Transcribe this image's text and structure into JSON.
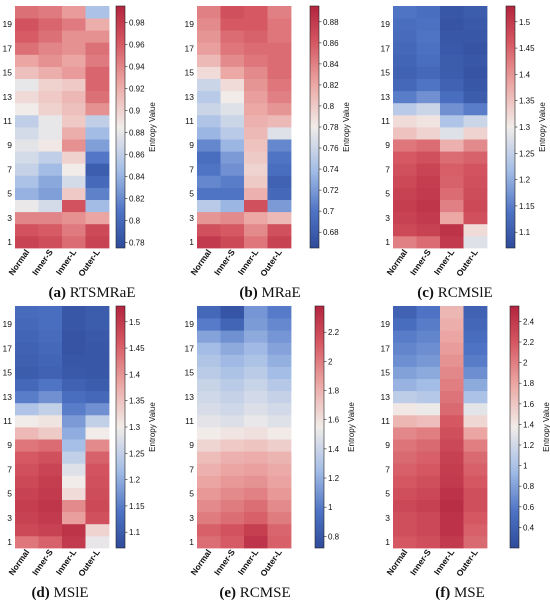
{
  "figure": {
    "panels_order": [
      "a",
      "b",
      "c",
      "d",
      "e",
      "f"
    ]
  },
  "chart_data": [
    {
      "id": "a",
      "type": "heatmap",
      "caption_letter": "(a)",
      "caption_name": "RTSMRaE",
      "x_categories": [
        "Normal",
        "Inner-S",
        "Inner-L",
        "Outer-L"
      ],
      "y_ticks": [
        1,
        3,
        5,
        7,
        9,
        11,
        13,
        15,
        17,
        19
      ],
      "scale_min": 0.775,
      "scale_max": 0.995,
      "cb_ticks": [
        "0.78",
        "0.8",
        "0.82",
        "0.84",
        "0.86",
        "0.88",
        "0.9",
        "0.92",
        "0.94",
        "0.96",
        "0.98"
      ],
      "cb_tick_values": [
        0.78,
        0.8,
        0.82,
        0.84,
        0.86,
        0.88,
        0.9,
        0.92,
        0.94,
        0.96,
        0.98
      ],
      "colorbar_label": "Entropy Value",
      "rows": [
        [
          0.975,
          0.968,
          0.952,
          0.975
        ],
        [
          0.965,
          0.96,
          0.945,
          0.97
        ],
        [
          0.94,
          0.94,
          0.935,
          0.925
        ],
        [
          0.882,
          0.87,
          0.965,
          0.845
        ],
        [
          0.84,
          0.83,
          0.905,
          0.815
        ],
        [
          0.85,
          0.835,
          0.87,
          0.8
        ],
        [
          0.862,
          0.845,
          0.885,
          0.79
        ],
        [
          0.87,
          0.86,
          0.9,
          0.81
        ],
        [
          0.878,
          0.888,
          0.935,
          0.83
        ],
        [
          0.87,
          0.88,
          0.92,
          0.845
        ],
        [
          0.86,
          0.88,
          0.905,
          0.86
        ],
        [
          0.885,
          0.9,
          0.91,
          0.935
        ],
        [
          0.895,
          0.905,
          0.915,
          0.95
        ],
        [
          0.88,
          0.9,
          0.905,
          0.955
        ],
        [
          0.91,
          0.92,
          0.93,
          0.955
        ],
        [
          0.925,
          0.935,
          0.925,
          0.945
        ],
        [
          0.95,
          0.94,
          0.935,
          0.95
        ],
        [
          0.96,
          0.95,
          0.935,
          0.935
        ],
        [
          0.965,
          0.955,
          0.945,
          0.92
        ],
        [
          0.95,
          0.945,
          0.93,
          0.85
        ]
      ]
    },
    {
      "id": "b",
      "type": "heatmap",
      "caption_letter": "(b)",
      "caption_name": "MRaE",
      "x_categories": [
        "Normal",
        "Inner-S",
        "Inner-L",
        "Outer-L"
      ],
      "y_ticks": [
        1,
        3,
        5,
        7,
        9,
        11,
        13,
        15,
        17,
        19
      ],
      "scale_min": 0.665,
      "scale_max": 0.895,
      "cb_ticks": [
        "0.68",
        "0.7",
        "0.72",
        "0.74",
        "0.76",
        "0.78",
        "0.8",
        "0.82",
        "0.84",
        "0.86",
        "0.88"
      ],
      "cb_tick_values": [
        0.68,
        0.7,
        0.72,
        0.74,
        0.76,
        0.78,
        0.8,
        0.82,
        0.84,
        0.86,
        0.88
      ],
      "colorbar_label": "Entropy Value",
      "rows": [
        [
          0.88,
          0.87,
          0.845,
          0.875
        ],
        [
          0.865,
          0.86,
          0.835,
          0.865
        ],
        [
          0.83,
          0.835,
          0.82,
          0.81
        ],
        [
          0.75,
          0.735,
          0.865,
          0.72
        ],
        [
          0.7,
          0.7,
          0.815,
          0.69
        ],
        [
          0.71,
          0.705,
          0.8,
          0.685
        ],
        [
          0.7,
          0.715,
          0.795,
          0.695
        ],
        [
          0.695,
          0.72,
          0.8,
          0.7
        ],
        [
          0.71,
          0.735,
          0.805,
          0.71
        ],
        [
          0.735,
          0.75,
          0.81,
          0.77
        ],
        [
          0.745,
          0.76,
          0.815,
          0.81
        ],
        [
          0.76,
          0.77,
          0.82,
          0.83
        ],
        [
          0.75,
          0.78,
          0.825,
          0.84
        ],
        [
          0.76,
          0.79,
          0.83,
          0.845
        ],
        [
          0.79,
          0.82,
          0.835,
          0.85
        ],
        [
          0.81,
          0.835,
          0.845,
          0.85
        ],
        [
          0.825,
          0.845,
          0.85,
          0.85
        ],
        [
          0.83,
          0.85,
          0.855,
          0.845
        ],
        [
          0.835,
          0.86,
          0.86,
          0.845
        ],
        [
          0.84,
          0.865,
          0.86,
          0.84
        ]
      ]
    },
    {
      "id": "c",
      "type": "heatmap",
      "caption_letter": "(c)",
      "caption_name": "RCMSlE",
      "x_categories": [
        "Normal",
        "Inner-S",
        "Inner-L",
        "Outer-L"
      ],
      "y_ticks": [
        1,
        3,
        5,
        7,
        9,
        11,
        13,
        15,
        17,
        19
      ],
      "scale_min": 1.07,
      "scale_max": 1.53,
      "cb_ticks": [
        "1.1",
        "1.15",
        "1.2",
        "1.25",
        "1.3",
        "1.35",
        "1.4",
        "1.45",
        "1.5"
      ],
      "cb_tick_values": [
        1.1,
        1.15,
        1.2,
        1.25,
        1.3,
        1.35,
        1.4,
        1.45,
        1.5
      ],
      "colorbar_label": "Entropy Value",
      "rows": [
        [
          1.42,
          1.44,
          1.5,
          1.28
        ],
        [
          1.48,
          1.49,
          1.51,
          1.32
        ],
        [
          1.49,
          1.5,
          1.38,
          1.47
        ],
        [
          1.495,
          1.505,
          1.42,
          1.48
        ],
        [
          1.49,
          1.5,
          1.44,
          1.475
        ],
        [
          1.48,
          1.495,
          1.45,
          1.47
        ],
        [
          1.47,
          1.485,
          1.455,
          1.465
        ],
        [
          1.46,
          1.47,
          1.44,
          1.45
        ],
        [
          1.43,
          1.44,
          1.37,
          1.41
        ],
        [
          1.35,
          1.33,
          1.28,
          1.33
        ],
        [
          1.32,
          1.31,
          1.23,
          1.26
        ],
        [
          1.24,
          1.26,
          1.17,
          1.15
        ],
        [
          1.15,
          1.17,
          1.13,
          1.1
        ],
        [
          1.12,
          1.14,
          1.11,
          1.09
        ],
        [
          1.11,
          1.12,
          1.1,
          1.085
        ],
        [
          1.115,
          1.13,
          1.1,
          1.09
        ],
        [
          1.12,
          1.135,
          1.095,
          1.085
        ],
        [
          1.125,
          1.14,
          1.09,
          1.09
        ],
        [
          1.13,
          1.135,
          1.085,
          1.095
        ],
        [
          1.14,
          1.13,
          1.09,
          1.1
        ]
      ]
    },
    {
      "id": "d",
      "type": "heatmap",
      "caption_letter": "(d)",
      "caption_name": "MSlE",
      "x_categories": [
        "Normal",
        "Inner-S",
        "Inner-L",
        "Outer-L"
      ],
      "y_ticks": [
        1,
        3,
        5,
        7,
        9,
        11,
        13,
        15,
        17,
        19
      ],
      "scale_min": 1.07,
      "scale_max": 1.53,
      "cb_ticks": [
        "1.1",
        "1.15",
        "1.2",
        "1.25",
        "1.3",
        "1.35",
        "1.4",
        "1.45",
        "1.5"
      ],
      "cb_tick_values": [
        1.1,
        1.15,
        1.2,
        1.25,
        1.3,
        1.35,
        1.4,
        1.45,
        1.5
      ],
      "colorbar_label": "Entropy Value",
      "rows": [
        [
          1.43,
          1.45,
          1.5,
          1.29
        ],
        [
          1.48,
          1.49,
          1.51,
          1.33
        ],
        [
          1.49,
          1.5,
          1.39,
          1.47
        ],
        [
          1.495,
          1.505,
          1.41,
          1.48
        ],
        [
          1.49,
          1.5,
          1.32,
          1.475
        ],
        [
          1.48,
          1.495,
          1.3,
          1.47
        ],
        [
          1.47,
          1.485,
          1.28,
          1.465
        ],
        [
          1.46,
          1.47,
          1.25,
          1.45
        ],
        [
          1.43,
          1.44,
          1.22,
          1.41
        ],
        [
          1.36,
          1.34,
          1.2,
          1.3
        ],
        [
          1.3,
          1.31,
          1.18,
          1.25
        ],
        [
          1.23,
          1.25,
          1.15,
          1.17
        ],
        [
          1.15,
          1.17,
          1.13,
          1.12
        ],
        [
          1.12,
          1.14,
          1.11,
          1.1
        ],
        [
          1.1,
          1.11,
          1.095,
          1.09
        ],
        [
          1.105,
          1.115,
          1.09,
          1.09
        ],
        [
          1.11,
          1.12,
          1.085,
          1.09
        ],
        [
          1.115,
          1.125,
          1.085,
          1.095
        ],
        [
          1.12,
          1.13,
          1.09,
          1.1
        ],
        [
          1.125,
          1.13,
          1.09,
          1.1
        ]
      ]
    },
    {
      "id": "e",
      "type": "heatmap",
      "caption_letter": "(e)",
      "caption_name": "RCMSE",
      "x_categories": [
        "Normal",
        "Inner-S",
        "Inner-L",
        "Outer-L"
      ],
      "y_ticks": [
        1,
        3,
        5,
        7,
        9,
        11,
        13,
        15,
        17,
        19
      ],
      "scale_min": 0.72,
      "scale_max": 2.38,
      "cb_ticks": [
        "0.8",
        "1",
        "1.2",
        "1.4",
        "1.6",
        "1.8",
        "2",
        "2.2"
      ],
      "cb_tick_values": [
        0.8,
        1.0,
        1.2,
        1.4,
        1.6,
        1.8,
        2.0,
        2.2
      ],
      "colorbar_label": "Entropy Value",
      "rows": [
        [
          2.05,
          2.12,
          2.3,
          2.1
        ],
        [
          2.1,
          2.15,
          2.25,
          2.08
        ],
        [
          2.0,
          2.05,
          2.1,
          2.0
        ],
        [
          1.95,
          2.0,
          2.05,
          1.95
        ],
        [
          1.9,
          1.95,
          1.98,
          1.9
        ],
        [
          1.85,
          1.9,
          1.92,
          1.86
        ],
        [
          1.8,
          1.85,
          1.87,
          1.83
        ],
        [
          1.75,
          1.8,
          1.82,
          1.79
        ],
        [
          1.65,
          1.7,
          1.72,
          1.68
        ],
        [
          1.55,
          1.58,
          1.6,
          1.56
        ],
        [
          1.5,
          1.47,
          1.52,
          1.48
        ],
        [
          1.45,
          1.42,
          1.47,
          1.43
        ],
        [
          1.42,
          1.38,
          1.43,
          1.38
        ],
        [
          1.39,
          1.34,
          1.39,
          1.32
        ],
        [
          1.34,
          1.29,
          1.34,
          1.25
        ],
        [
          1.3,
          1.24,
          1.29,
          1.2
        ],
        [
          1.25,
          1.18,
          1.24,
          1.15
        ],
        [
          1.15,
          1.08,
          1.18,
          1.1
        ],
        [
          1.0,
          0.88,
          1.12,
          1.05
        ],
        [
          0.9,
          0.78,
          1.1,
          1.0
        ]
      ]
    },
    {
      "id": "f",
      "type": "heatmap",
      "caption_letter": "(f)",
      "caption_name": "MSE",
      "x_categories": [
        "Normal",
        "Inner-S",
        "Inner-L",
        "Outer-L"
      ],
      "y_ticks": [
        1,
        3,
        5,
        7,
        9,
        11,
        13,
        15,
        17,
        19
      ],
      "scale_min": 0.2,
      "scale_max": 2.55,
      "cb_ticks": [
        "0.4",
        "0.6",
        "0.8",
        "1",
        "1.2",
        "1.4",
        "1.6",
        "1.8",
        "2",
        "2.2",
        "2.4"
      ],
      "cb_tick_values": [
        0.4,
        0.6,
        0.8,
        1.0,
        1.2,
        1.4,
        1.6,
        1.8,
        2.0,
        2.2,
        2.4
      ],
      "colorbar_label": "Entropy Value",
      "rows": [
        [
          2.2,
          2.25,
          2.4,
          2.1
        ],
        [
          2.25,
          2.3,
          2.45,
          2.15
        ],
        [
          2.25,
          2.3,
          2.45,
          2.2
        ],
        [
          2.3,
          2.35,
          2.48,
          2.25
        ],
        [
          2.25,
          2.3,
          2.45,
          2.25
        ],
        [
          2.2,
          2.25,
          2.4,
          2.2
        ],
        [
          2.15,
          2.2,
          2.38,
          2.15
        ],
        [
          2.1,
          2.15,
          2.35,
          2.1
        ],
        [
          2.05,
          2.1,
          2.3,
          2.0
        ],
        [
          1.95,
          2.0,
          2.25,
          1.8
        ],
        [
          1.7,
          1.65,
          2.2,
          1.5
        ],
        [
          1.4,
          1.35,
          2.1,
          1.3
        ],
        [
          1.1,
          1.05,
          2.05,
          1.0
        ],
        [
          0.9,
          0.95,
          2.0,
          0.85
        ],
        [
          0.8,
          0.85,
          1.95,
          0.7
        ],
        [
          0.7,
          0.75,
          1.9,
          0.6
        ],
        [
          0.65,
          0.7,
          1.85,
          0.55
        ],
        [
          0.6,
          0.65,
          1.8,
          0.5
        ],
        [
          0.5,
          0.6,
          1.75,
          0.45
        ],
        [
          0.4,
          0.55,
          1.7,
          0.4
        ]
      ]
    }
  ]
}
